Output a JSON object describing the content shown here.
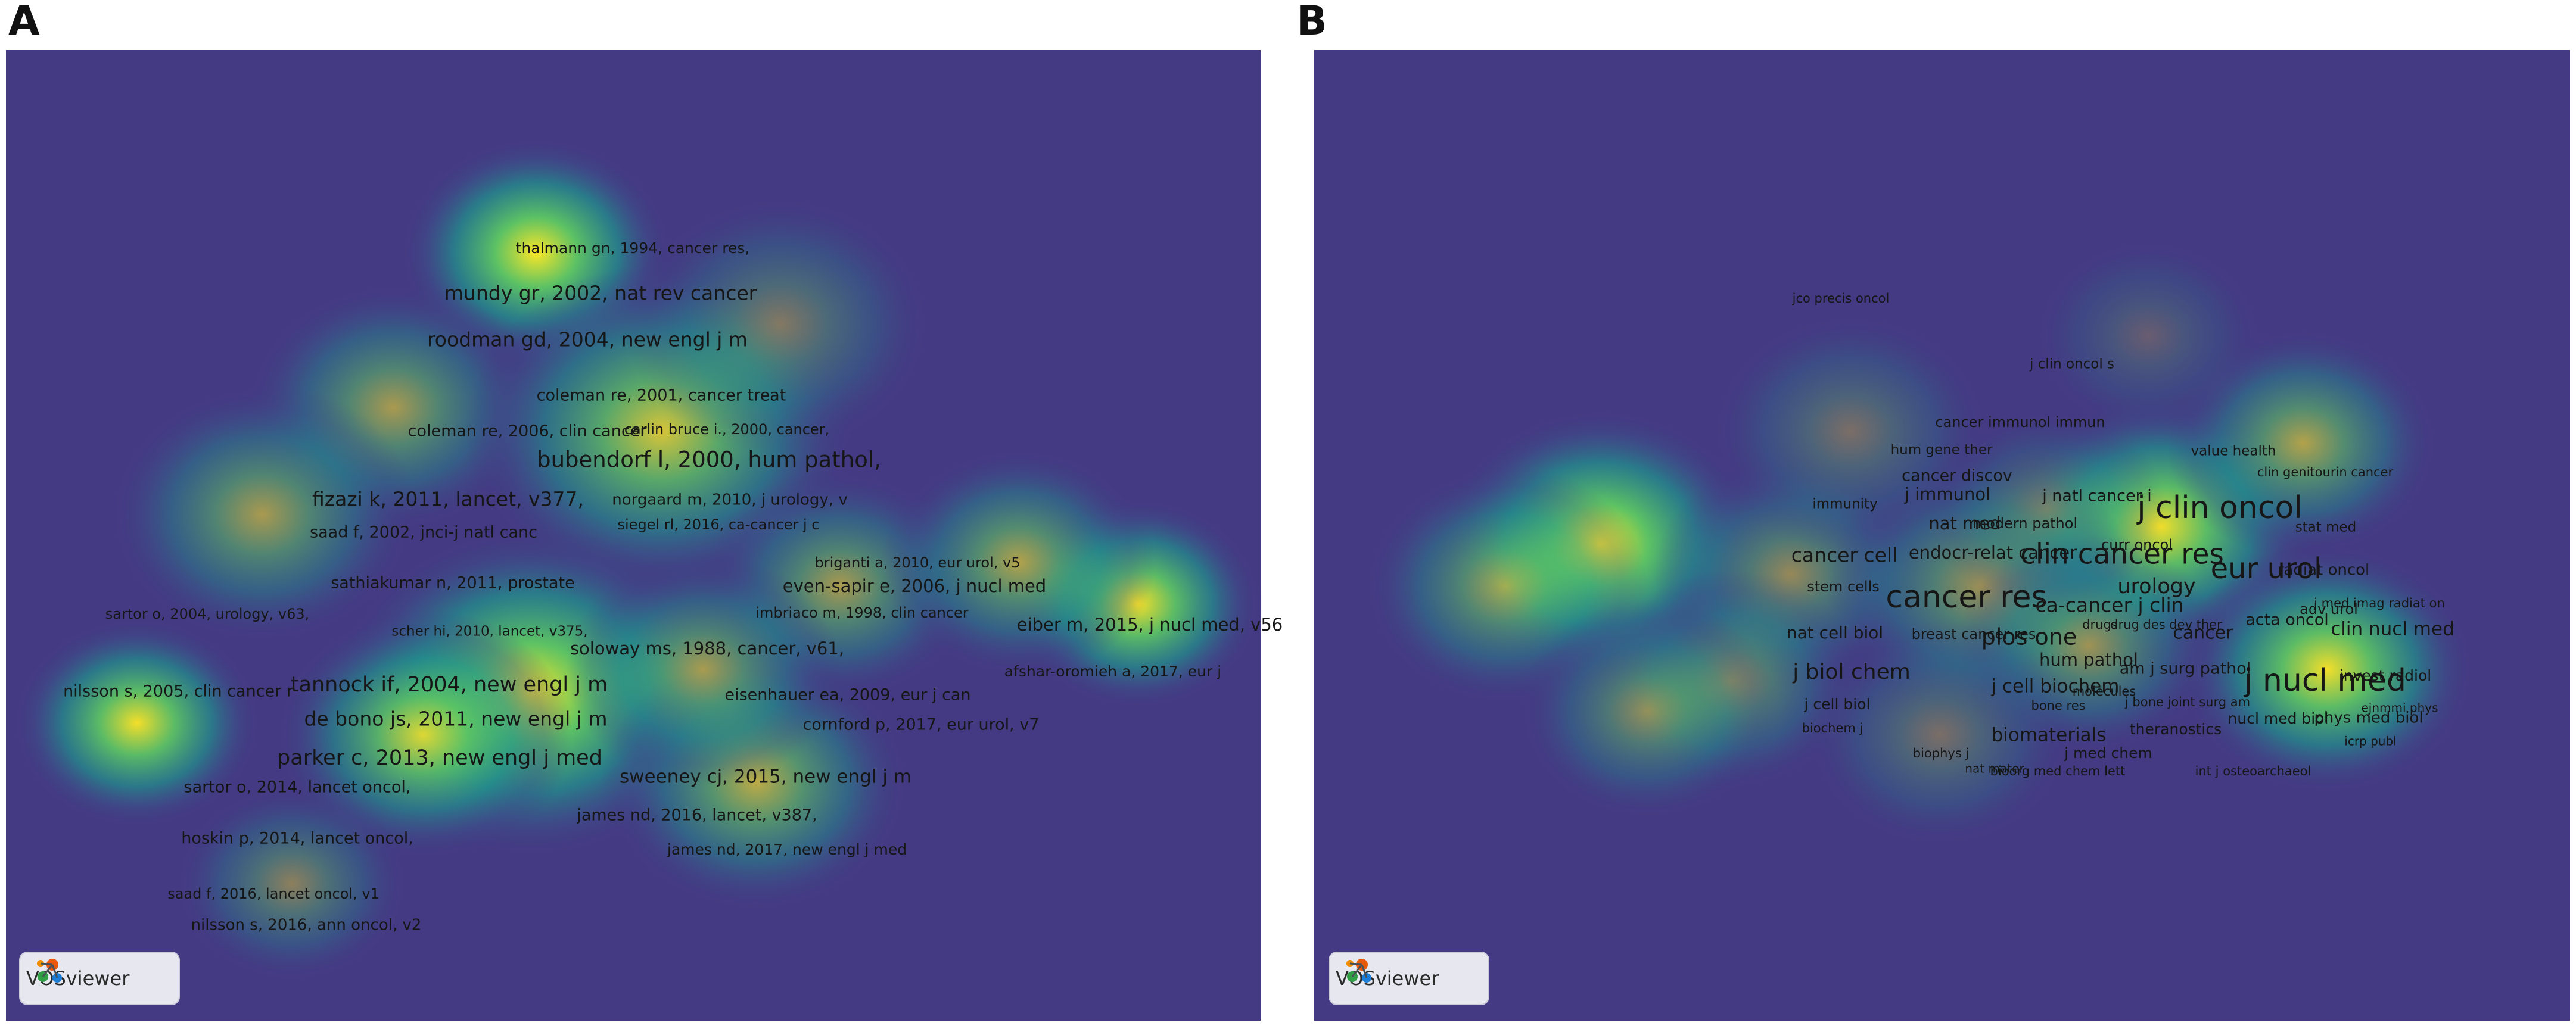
{
  "colors": {
    "background": "#443a83",
    "low": "#3b528b",
    "mid": "#21918c",
    "high": "#5ec962",
    "peak": "#fde725"
  },
  "panels": [
    {
      "letter": "A",
      "badge": {
        "icon": "vosviewer-logo-icon",
        "text": "VOSviewer"
      },
      "labels": [
        "thalmann gn, 1994, cancer res,",
        "mundy gr, 2002, nat rev cancer",
        "roodman gd, 2004, new engl j m",
        "coleman re, 2001, cancer treat",
        "coleman re, 2006, clin cancer",
        "carlin bruce i., 2000, cancer,",
        "bubendorf l, 2000, hum pathol,",
        "fizazi k, 2011, lancet, v377,",
        "norgaard m, 2010, j urology, v",
        "saad f, 2002, jnci-j natl canc",
        "siegel rl, 2016, ca-cancer j c",
        "briganti a, 2010, eur urol, v5",
        "even-sapir e, 2006, j nucl med",
        "sathiakumar n, 2011, prostate",
        "sartor o, 2004, urology, v63,",
        "imbriaco m, 1998, clin cancer",
        "eiber m, 2015, j nucl med, v56",
        "scher hi, 2010, lancet, v375,",
        "soloway ms, 1988, cancer, v61,",
        "afshar-oromieh a, 2017, eur j",
        "nilsson s, 2005, clin cancer r",
        "tannock if, 2004, new engl j m",
        "eisenhauer ea, 2009, eur j can",
        "de bono js, 2011, new engl j m",
        "cornford p, 2017, eur urol, v7",
        "parker c, 2013, new engl j med",
        "sweeney cj, 2015, new engl j m",
        "sartor o, 2014, lancet oncol,",
        "james nd, 2016, lancet, v387,",
        "hoskin p, 2014, lancet oncol,",
        "james nd, 2017, new engl j med",
        "saad f, 2016, lancet oncol, v1",
        "nilsson s, 2016, ann oncol, v2"
      ]
    },
    {
      "letter": "B",
      "badge": {
        "icon": "vosviewer-logo-icon",
        "text": "VOSviewer"
      },
      "labels": [
        "jco precis oncol",
        "j clin oncol s",
        "cancer immunol immun",
        "hum gene ther",
        "value health",
        "cancer discov",
        "clin genitourin cancer",
        "j natl cancer i",
        "immunity",
        "j immunol",
        "j clin oncol",
        "nat med",
        "modern pathol",
        "stat med",
        "curr oncol",
        "cancer cell",
        "endocr-relat cancer",
        "clin cancer res",
        "eur urol",
        "radiat oncol",
        "stem cells",
        "urology",
        "cancer res",
        "ca-cancer j clin",
        "j med imag radiat on",
        "adv urol",
        "acta oncol",
        "drugs",
        "drug des dev ther",
        "nat cell biol",
        "breast cancer res",
        "plos one",
        "cancer",
        "clin nucl med",
        "hum pathol",
        "am j surg pathol",
        "j biol chem",
        "j nucl med",
        "invest radiol",
        "j cell biochem",
        "molecules",
        "j cell biol",
        "bone res",
        "j bone joint surg am",
        "ejnmmi phys",
        "nucl med biol",
        "phys med biol",
        "biochem j",
        "theranostics",
        "biomaterials",
        "icrp publ",
        "j med chem",
        "biophys j",
        "nat mater",
        "bioorg med chem lett",
        "int j osteoarchaeol"
      ]
    }
  ]
}
